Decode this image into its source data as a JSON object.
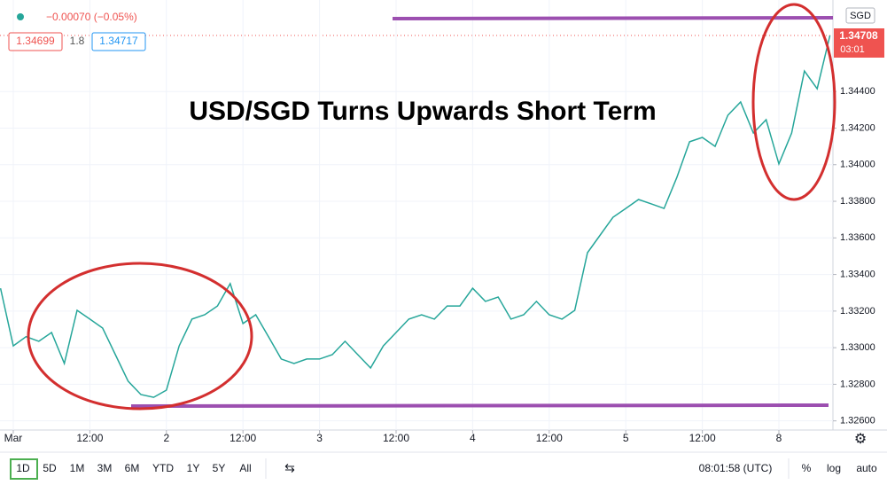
{
  "chart_data": {
    "type": "line",
    "title": "USD/SGD Turns Upwards Short Term",
    "x": [
      -2,
      0,
      2,
      4,
      6,
      8,
      10,
      12,
      14,
      16,
      18,
      20,
      22,
      24,
      26,
      28,
      30,
      32,
      34,
      36,
      38,
      40,
      42,
      44,
      46,
      48,
      50,
      52,
      54,
      56,
      58,
      60,
      62,
      64,
      66,
      68,
      70,
      72,
      74,
      76,
      78,
      80,
      82,
      84,
      86,
      88,
      90,
      92,
      94,
      96,
      98,
      100,
      102,
      104,
      106,
      108,
      110,
      112,
      114,
      116,
      118,
      120,
      122,
      124,
      126,
      128
    ],
    "series": [
      {
        "name": "USD/SGD",
        "color": "#26a69a",
        "values": [
          1.33325,
          1.3301,
          1.3306,
          1.33035,
          1.33083,
          1.32914,
          1.33204,
          1.33156,
          1.33107,
          1.32962,
          1.32817,
          1.32744,
          1.32729,
          1.32768,
          1.3301,
          1.33156,
          1.3318,
          1.33228,
          1.3335,
          1.33132,
          1.3318,
          1.3306,
          1.32938,
          1.32914,
          1.32938,
          1.32938,
          1.32962,
          1.33035,
          1.32962,
          1.32889,
          1.3301,
          1.33083,
          1.33156,
          1.3318,
          1.33156,
          1.33228,
          1.33228,
          1.33325,
          1.33253,
          1.33277,
          1.33156,
          1.3318,
          1.33253,
          1.3318,
          1.33156,
          1.33204,
          1.33519,
          1.33616,
          1.33713,
          1.33761,
          1.3381,
          1.33786,
          1.33761,
          1.3393,
          1.34125,
          1.34149,
          1.341,
          1.3427,
          1.34343,
          1.34173,
          1.34246,
          1.34004,
          1.34173,
          1.34512,
          1.34415,
          1.34706
        ]
      }
    ],
    "xlim": [
      -2.08,
      128.47
    ],
    "xticks": [
      {
        "value": 0,
        "label": "Mar"
      },
      {
        "value": 12,
        "label": "12:00"
      },
      {
        "value": 24,
        "label": "2"
      },
      {
        "value": 36,
        "label": "12:00"
      },
      {
        "value": 48,
        "label": "3"
      },
      {
        "value": 60,
        "label": "12:00"
      },
      {
        "value": 72,
        "label": "4"
      },
      {
        "value": 84,
        "label": "12:00"
      },
      {
        "value": 96,
        "label": "5"
      },
      {
        "value": 108,
        "label": "12:00"
      },
      {
        "value": 120,
        "label": "8"
      }
    ],
    "ylim": [
      1.3255,
      1.349
    ],
    "yticks": [
      {
        "value": 1.326,
        "label": "1.32600"
      },
      {
        "value": 1.328,
        "label": "1.32800"
      },
      {
        "value": 1.33,
        "label": "1.33000"
      },
      {
        "value": 1.332,
        "label": "1.33200"
      },
      {
        "value": 1.334,
        "label": "1.33400"
      },
      {
        "value": 1.336,
        "label": "1.33600"
      },
      {
        "value": 1.338,
        "label": "1.33800"
      },
      {
        "value": 1.34,
        "label": "1.34000"
      },
      {
        "value": 1.342,
        "label": "1.34200"
      },
      {
        "value": 1.344,
        "label": "1.34400"
      }
    ],
    "grid": true
  },
  "header": {
    "change": "−0.00070 (−0.05%)",
    "bid": "1.34699",
    "spread": "1.8",
    "ask": "1.34717"
  },
  "price_scale": {
    "currency": "SGD",
    "last": "1.34708",
    "countdown": "03:01"
  },
  "toolbar": {
    "ranges": [
      "1D",
      "5D",
      "1M",
      "3M",
      "6M",
      "YTD",
      "1Y",
      "5Y",
      "All"
    ],
    "clock": "08:01:58 (UTC)",
    "percent": "%",
    "log": "log",
    "auto": "auto"
  }
}
